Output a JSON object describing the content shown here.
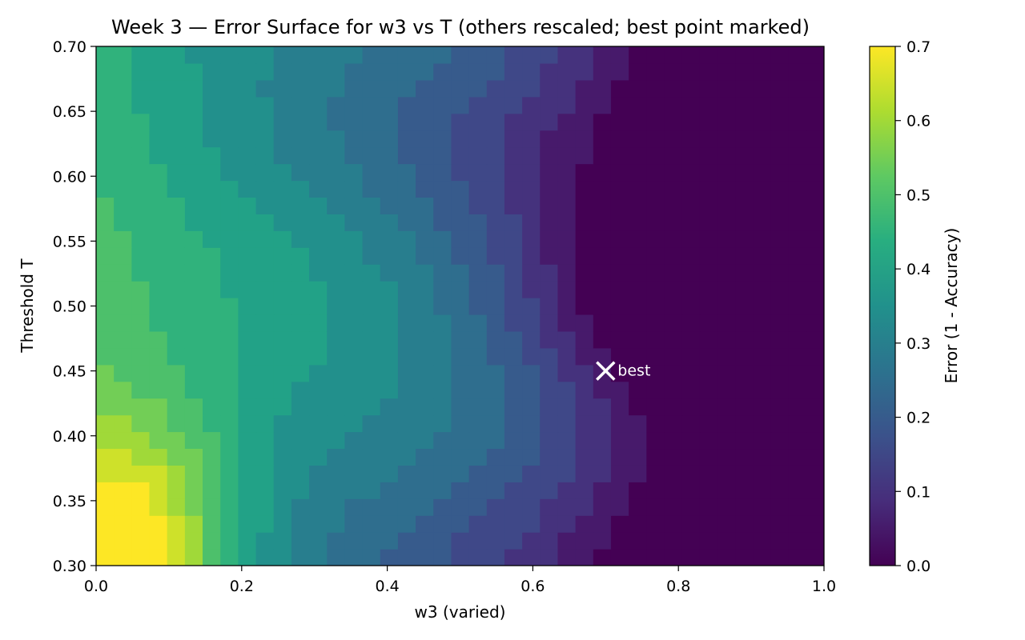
{
  "chart_data": {
    "type": "heatmap",
    "title": "Week 3 — Error Surface for w3 vs T (others rescaled; best point marked)",
    "xlabel": "w3 (varied)",
    "ylabel": "Threshold T",
    "xlim": [
      0.0,
      1.0
    ],
    "ylim": [
      0.3,
      0.7
    ],
    "x_ticks": [
      "0.0",
      "0.2",
      "0.4",
      "0.6",
      "0.8",
      "1.0"
    ],
    "y_ticks": [
      "0.30",
      "0.35",
      "0.40",
      "0.45",
      "0.50",
      "0.55",
      "0.60",
      "0.65",
      "0.70"
    ],
    "colorbar": {
      "label": "Error (1 - Accuracy)",
      "range": [
        0.0,
        0.7
      ],
      "ticks": [
        "0.0",
        "0.1",
        "0.2",
        "0.3",
        "0.4",
        "0.5",
        "0.6",
        "0.7"
      ],
      "colormap": "viridis"
    },
    "grid_resolution": [
      41,
      31
    ],
    "approx_surface": "error is lowest (0.0) around w3 = 0.7–1.0, T = 0.38–0.53; highest (0.7) at w3 near 0, T near 0.30; values quantized to multiples of 0.05",
    "best_point": {
      "x": 0.7,
      "y": 0.45,
      "label": "best"
    },
    "grid": false
  }
}
